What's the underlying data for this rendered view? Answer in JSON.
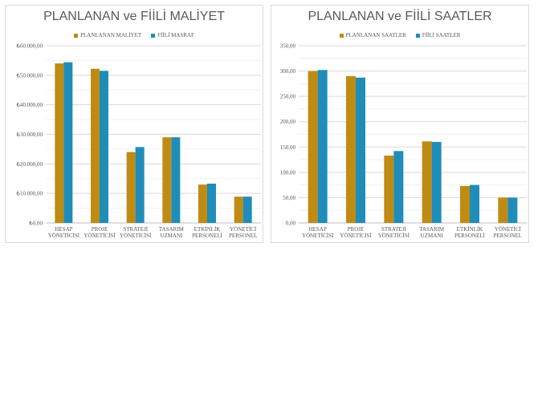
{
  "colors": {
    "planned": "#BF8B12",
    "actual": "#1F8DB9",
    "grid": "#d9d9d9",
    "text": "#595959"
  },
  "chart_data": [
    {
      "id": "cost",
      "type": "bar",
      "title": "PLANLANAN ve FİİLİ MALİYET",
      "categories": [
        [
          "HESAP",
          "YÖNETİCİSİ"
        ],
        [
          "PROJE",
          "YÖNETİCİSİ"
        ],
        [
          "STRATEJİ",
          "YÖNETİCİSİ"
        ],
        [
          "TASARIM",
          "UZMANI"
        ],
        [
          "ETKİNLİK",
          "PERSONELİ"
        ],
        [
          "YÖNETİCİ",
          "PERSONEL"
        ]
      ],
      "series": [
        {
          "name": "PLANLANAN MALİYET",
          "color": "#BF8B12",
          "values": [
            54000,
            52200,
            24000,
            29000,
            13000,
            8900
          ]
        },
        {
          "name": "FİİLİ MASRAF",
          "color": "#1F8DB9",
          "values": [
            54400,
            51500,
            25700,
            29000,
            13300,
            8900
          ]
        }
      ],
      "ylim": [
        0,
        60000
      ],
      "yticks": [
        0,
        10000,
        20000,
        30000,
        40000,
        50000,
        60000
      ],
      "ytick_labels": [
        "₺0,00",
        "₺10.000,00",
        "₺20.000,00",
        "₺30.000,00",
        "₺40.000,00",
        "₺50.000,00",
        "₺60.000,00"
      ],
      "legend_position": "top",
      "grid": true
    },
    {
      "id": "hours",
      "type": "bar",
      "title": "PLANLANAN ve FİİLİ SAATLER",
      "categories": [
        [
          "HESAP",
          "YÖNETİCİSİ"
        ],
        [
          "PROJE",
          "YÖNETİCİSİ"
        ],
        [
          "STRATEJİ",
          "YÖNETİCİSİ"
        ],
        [
          "TASARIM",
          "UZMANI"
        ],
        [
          "ETKİNLİK",
          "PERSONELİ"
        ],
        [
          "YÖNETİCİ",
          "PERSONEL"
        ]
      ],
      "series": [
        {
          "name": "PLANLANAN SAATLER",
          "color": "#BF8B12",
          "values": [
            300,
            290,
            133,
            161,
            73,
            50
          ]
        },
        {
          "name": "FİİLİ SAATLER",
          "color": "#1F8DB9",
          "values": [
            302,
            287,
            142,
            160,
            75,
            50
          ]
        }
      ],
      "ylim": [
        0,
        350
      ],
      "yticks": [
        0,
        50,
        100,
        150,
        200,
        250,
        300,
        350
      ],
      "ytick_labels": [
        "0,00",
        "50,00",
        "100,00",
        "150,00",
        "200,00",
        "250,00",
        "300,00",
        "350,00"
      ],
      "legend_position": "top",
      "grid": true
    }
  ]
}
